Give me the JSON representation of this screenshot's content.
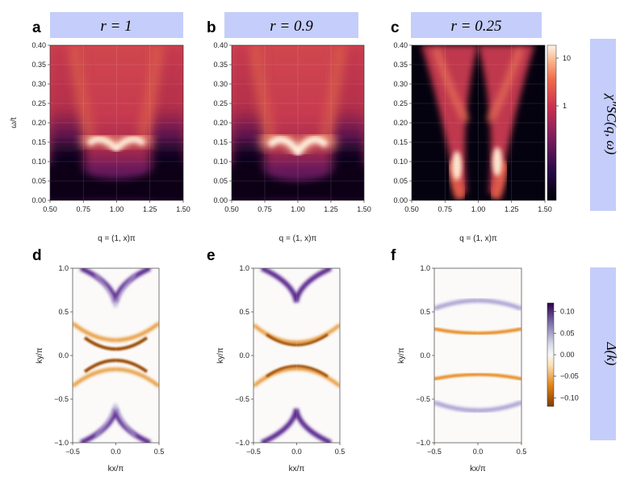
{
  "figure_domain": "physics",
  "chart_data": [
    {
      "panel": "a",
      "type": "heatmap",
      "title": "r = 1",
      "xlabel": "q = (1, x)π",
      "ylabel": "ω/t",
      "xlim": [
        0.5,
        1.5
      ],
      "ylim": [
        0,
        0.4
      ],
      "xticks": [
        "0.50",
        "0.75",
        "1.00",
        "1.25",
        "1.50"
      ],
      "yticks": [
        "0.00",
        "0.05",
        "0.10",
        "0.15",
        "0.20",
        "0.25",
        "0.30",
        "0.35",
        "0.40"
      ],
      "features": {
        "low_energy_arc_peak_omega": 0.14,
        "gap_edge_omega": 0.06,
        "r": 1
      }
    },
    {
      "panel": "b",
      "type": "heatmap",
      "title": "r = 0.9",
      "xlabel": "q = (1, x)π",
      "ylabel": "",
      "xlim": [
        0.5,
        1.5
      ],
      "ylim": [
        0,
        0.4
      ],
      "xticks": [
        "0.50",
        "0.75",
        "1.00",
        "1.25",
        "1.50"
      ],
      "yticks": [
        "0.00",
        "0.05",
        "0.10",
        "0.15",
        "0.20",
        "0.25",
        "0.30",
        "0.35",
        "0.40"
      ],
      "features": {
        "low_energy_arc_peak_omega": 0.135,
        "gap_edge_omega": 0.05,
        "r": 0.9
      }
    },
    {
      "panel": "c",
      "type": "heatmap",
      "title": "r = 0.25",
      "xlabel": "q = (1, x)π",
      "ylabel": "",
      "xlim": [
        0.5,
        1.5
      ],
      "ylim": [
        0,
        0.4
      ],
      "xticks": [
        "0.50",
        "0.75",
        "1.00",
        "1.25",
        "1.50"
      ],
      "yticks": [
        "0.00",
        "0.05",
        "0.10",
        "0.15",
        "0.20",
        "0.25",
        "0.30",
        "0.35",
        "0.40"
      ],
      "features": {
        "branch_q": [
          0.83,
          1.17
        ],
        "hotspot_omega": 0.09,
        "r": 0.25
      }
    },
    {
      "panel": "d",
      "type": "heatmap",
      "title": "",
      "xlabel": "kx/π",
      "ylabel": "ky/π",
      "xlim": [
        -0.5,
        0.5
      ],
      "ylim": [
        -1,
        1
      ],
      "xticks": [
        "−0.5",
        "0.0",
        "0.5"
      ],
      "yticks": [
        "−1.0",
        "−0.5",
        "0.0",
        "0.5",
        "1.0"
      ],
      "features": {
        "orange_arcs_ky": [
          0.07,
          -0.07
        ],
        "purple_arcs_ky": [
          0.92,
          -0.92
        ]
      }
    },
    {
      "panel": "e",
      "type": "heatmap",
      "title": "",
      "xlabel": "kx/π",
      "ylabel": "ky/π",
      "xlim": [
        -0.5,
        0.5
      ],
      "ylim": [
        -1,
        1
      ],
      "xticks": [
        "−0.5",
        "0.0",
        "0.5"
      ],
      "yticks": [
        "−1.0",
        "−0.5",
        "0.0",
        "0.5",
        "1.0"
      ],
      "features": {
        "orange_arcs_ky": [
          0.12,
          -0.12
        ],
        "purple_arcs_ky": [
          0.92,
          -0.92
        ]
      }
    },
    {
      "panel": "f",
      "type": "heatmap",
      "title": "",
      "xlabel": "kx/π",
      "ylabel": "ky/π",
      "xlim": [
        -0.5,
        0.5
      ],
      "ylim": [
        -1,
        1
      ],
      "xticks": [
        "−0.5",
        "0.0",
        "0.5"
      ],
      "yticks": [
        "−1.0",
        "−0.5",
        "0.0",
        "0.5",
        "1.0"
      ],
      "features": {
        "orange_lines_ky": [
          0.27,
          -0.27
        ],
        "purple_lines_ky": [
          0.58,
          -0.58
        ]
      }
    }
  ],
  "colorbar_top": {
    "label": "χ″SC(q, ω)",
    "scale": "log",
    "ticks": [
      "10",
      "1"
    ]
  },
  "colorbar_bottom": {
    "label": "Δ(k)",
    "ticks": [
      "0.10",
      "0.05",
      "0.00",
      "−0.05",
      "−0.10"
    ],
    "range": [
      -0.12,
      0.12
    ]
  },
  "panel_letters": [
    "a",
    "b",
    "c",
    "d",
    "e",
    "f"
  ],
  "colors": {
    "title_box": "#c5cdfa",
    "side_box": "#c5cdfa"
  }
}
